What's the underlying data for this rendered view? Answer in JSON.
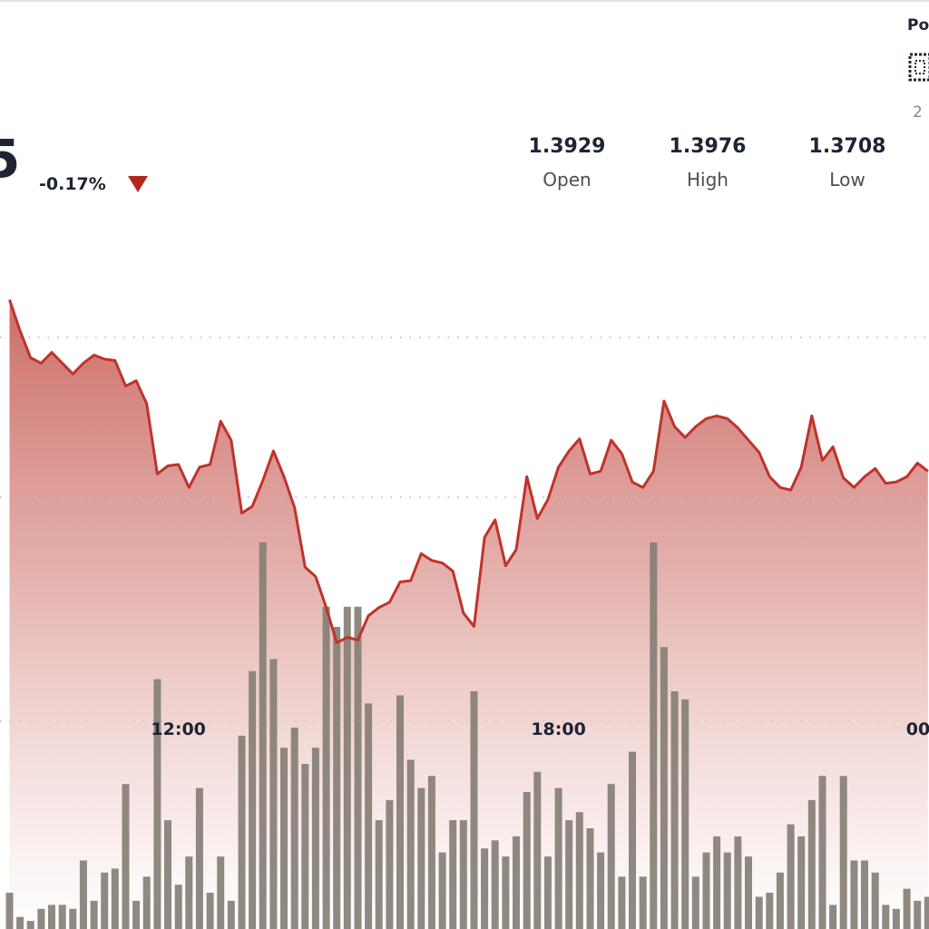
{
  "header": {
    "price": "5",
    "change": "-0.17%",
    "stats": [
      {
        "value": "1.3929",
        "label": "Open"
      },
      {
        "value": "1.3976",
        "label": "High"
      },
      {
        "value": "1.3708",
        "label": "Low"
      }
    ],
    "side_title": "Po",
    "side_note": "2"
  },
  "chart_data": {
    "type": "line",
    "x": [
      560,
      570,
      580,
      590,
      600,
      610,
      620,
      630,
      640,
      650,
      660,
      670,
      680,
      690,
      700,
      710,
      720,
      730,
      740,
      750,
      760,
      770,
      780,
      790,
      800,
      810,
      820,
      830,
      840,
      850,
      860,
      870,
      880,
      890,
      900,
      910,
      920,
      930,
      940,
      950,
      960,
      970,
      980,
      990,
      1000,
      1010,
      1020,
      1030,
      1040,
      1050,
      1060,
      1070,
      1080,
      1090,
      1100,
      1110,
      1120,
      1130,
      1140,
      1150,
      1160,
      1170,
      1180,
      1190,
      1200,
      1210,
      1220,
      1230,
      1240,
      1250,
      1260,
      1270,
      1280,
      1290,
      1300,
      1310,
      1320,
      1330,
      1340,
      1350,
      1360,
      1370,
      1380,
      1390,
      1400,
      1410,
      1420,
      1430
    ],
    "xlim": [
      551,
      1431
    ],
    "xticks": [
      {
        "value": 720,
        "label": "12:00"
      },
      {
        "value": 1080,
        "label": "18:00"
      },
      {
        "value": 1440,
        "label": "00"
      }
    ],
    "ylim": [
      1.35,
      1.402
    ],
    "y2lim": [
      0,
      100
    ],
    "series": [
      {
        "type": "area",
        "color": "#c0332b",
        "values": [
          1.3966,
          1.3943,
          1.3923,
          1.3919,
          1.3927,
          1.3919,
          1.3911,
          1.3919,
          1.3925,
          1.3922,
          1.3921,
          1.3902,
          1.3906,
          1.3889,
          1.3837,
          1.3843,
          1.3844,
          1.3827,
          1.3842,
          1.3844,
          1.3876,
          1.3862,
          1.3808,
          1.3813,
          1.3832,
          1.3854,
          1.3835,
          1.3812,
          1.3768,
          1.3761,
          1.3738,
          1.3712,
          1.3716,
          1.3714,
          1.3732,
          1.3738,
          1.3742,
          1.3757,
          1.3758,
          1.3778,
          1.3773,
          1.3771,
          1.3765,
          1.3734,
          1.3724,
          1.379,
          1.3803,
          1.3769,
          1.3781,
          1.3835,
          1.3804,
          1.3818,
          1.3842,
          1.3854,
          1.3863,
          1.3837,
          1.3839,
          1.3862,
          1.3852,
          1.3831,
          1.3827,
          1.3839,
          1.3891,
          1.3872,
          1.3864,
          1.3872,
          1.3878,
          1.388,
          1.3878,
          1.3871,
          1.3862,
          1.3853,
          1.3835,
          1.3827,
          1.3825,
          1.3842,
          1.388,
          1.3847,
          1.3857,
          1.3834,
          1.3827,
          1.3835,
          1.3841,
          1.383,
          1.3831,
          1.3835,
          1.3845,
          1.3839
        ]
      },
      {
        "type": "bar",
        "axis": "y2",
        "color": "#857f76",
        "values": [
          9,
          3,
          2,
          5,
          6,
          6,
          5,
          17,
          7,
          14,
          15,
          36,
          7,
          13,
          62,
          27,
          11,
          18,
          35,
          9,
          18,
          7,
          48,
          64,
          96,
          67,
          45,
          50,
          41,
          45,
          80,
          75,
          80,
          80,
          56,
          27,
          32,
          58,
          42,
          35,
          38,
          19,
          27,
          27,
          59,
          20,
          22,
          18,
          23,
          34,
          39,
          18,
          35,
          27,
          29,
          25,
          19,
          36,
          13,
          44,
          13,
          96,
          70,
          59,
          57,
          13,
          19,
          23,
          19,
          23,
          18,
          8,
          9,
          14,
          26,
          23,
          32,
          38,
          6,
          38,
          17,
          17,
          14,
          6,
          5,
          10,
          7,
          8
        ]
      }
    ]
  }
}
